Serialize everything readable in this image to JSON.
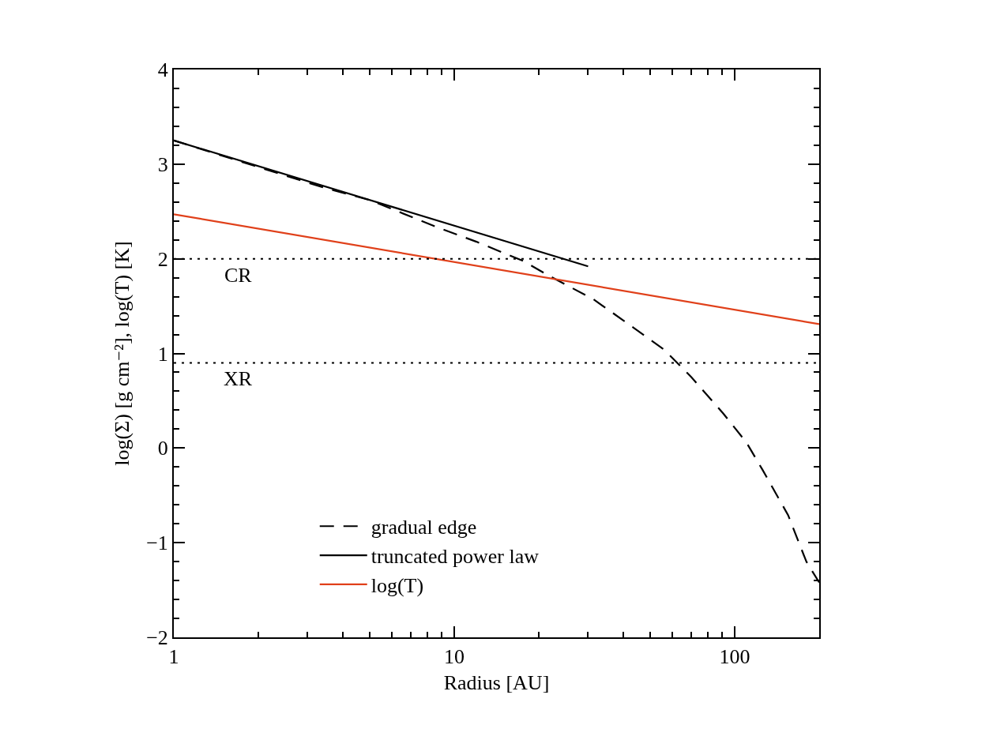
{
  "chart_data": {
    "type": "line",
    "xlabel": "Radius [AU]",
    "ylabel": "log(Σ) [g cm⁻²], log(T) [K]",
    "log": "x",
    "xlim": [
      1,
      200
    ],
    "xticks": [
      1,
      10,
      100
    ],
    "ylim": [
      -2,
      4
    ],
    "yticks": [
      {
        "value": -2,
        "label": "−2"
      },
      {
        "value": -1,
        "label": "−1"
      },
      0,
      1,
      2,
      3,
      4
    ],
    "grid": false,
    "legend": "bottom",
    "marker": "none",
    "series": [
      {
        "name": "gradual edge",
        "color": "#000000",
        "line_style": "dashed",
        "x": [
          1,
          2,
          3.44,
          5,
          8.73,
          12,
          17.5,
          22.1,
          31.4,
          40,
          56,
          70,
          90.7,
          110,
          125.6,
          155,
          180,
          200
        ],
        "values": [
          3.25,
          2.97,
          2.75,
          2.62,
          2.33,
          2.18,
          1.98,
          1.81,
          1.57,
          1.35,
          1.04,
          0.75,
          0.37,
          0.06,
          -0.23,
          -0.71,
          -1.2,
          -1.42
        ]
      },
      {
        "name": "truncated power law",
        "color": "#000000",
        "line_style": "solid",
        "x": [
          1,
          30
        ],
        "values": [
          3.25,
          1.92
        ]
      },
      {
        "name": "log(T)",
        "color": "#e0401a",
        "line_style": "solid",
        "x": [
          1,
          200
        ],
        "values": [
          2.47,
          1.31
        ]
      }
    ],
    "ref_lines": [
      {
        "axis": "y",
        "value": 2.0,
        "label": "CR",
        "line_style": "dotted",
        "color": "#000000"
      },
      {
        "axis": "y",
        "value": 0.9,
        "label": "XR",
        "line_style": "dotted",
        "color": "#000000"
      }
    ]
  }
}
